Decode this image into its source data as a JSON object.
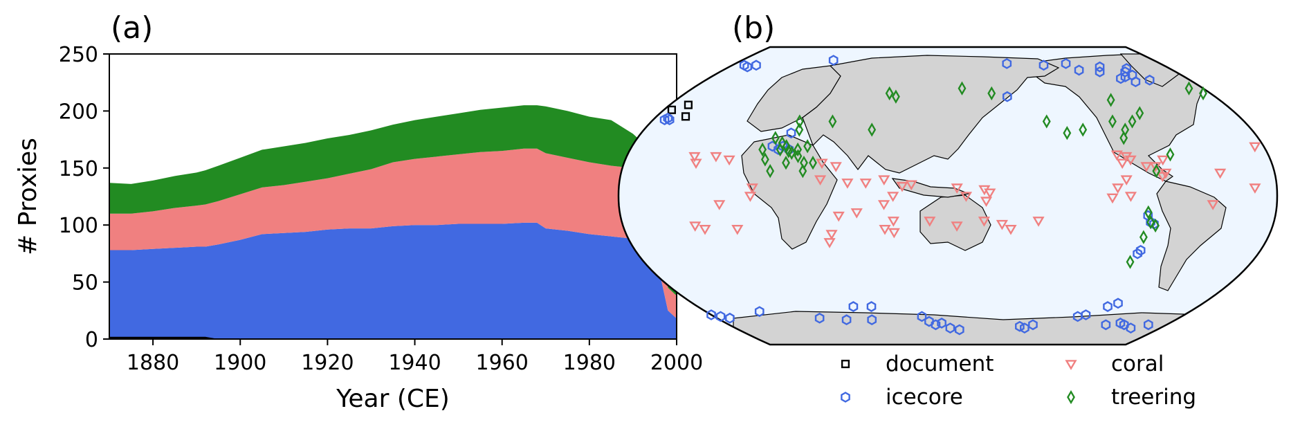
{
  "chart_data": [
    {
      "panel_label": "(a)",
      "type": "area",
      "stacked": true,
      "xlabel": "Year (CE)",
      "ylabel": "# Proxies",
      "xlim": [
        1870,
        2000
      ],
      "ylim": [
        0,
        250
      ],
      "xticks": [
        1880,
        1900,
        1920,
        1940,
        1960,
        1980,
        2000
      ],
      "yticks": [
        0,
        50,
        100,
        150,
        200,
        250
      ],
      "x": [
        1870,
        1875,
        1880,
        1885,
        1890,
        1892,
        1895,
        1900,
        1905,
        1910,
        1915,
        1920,
        1925,
        1930,
        1935,
        1940,
        1945,
        1950,
        1955,
        1960,
        1965,
        1968,
        1970,
        1975,
        1980,
        1985,
        1990,
        1992,
        1994,
        1996,
        1998,
        2000
      ],
      "series": [
        {
          "label": "document",
          "color": "#000000",
          "values": [
            2,
            2,
            2,
            2,
            2,
            2,
            0,
            0,
            0,
            0,
            0,
            0,
            0,
            0,
            0,
            0,
            0,
            0,
            0,
            0,
            0,
            0,
            0,
            0,
            0,
            0,
            0,
            0,
            0,
            0,
            0,
            0
          ]
        },
        {
          "label": "icecore",
          "color": "#4169e1",
          "values": [
            78,
            78,
            79,
            80,
            81,
            81,
            83,
            87,
            92,
            93,
            94,
            96,
            97,
            97,
            99,
            100,
            100,
            101,
            101,
            101,
            102,
            102,
            97,
            95,
            92,
            90,
            88,
            84,
            75,
            60,
            25,
            18
          ]
        },
        {
          "label": "coral",
          "color": "#f08080",
          "values": [
            32,
            32,
            33,
            35,
            36,
            37,
            38,
            40,
            41,
            42,
            44,
            45,
            48,
            52,
            56,
            58,
            60,
            61,
            63,
            64,
            65,
            65,
            66,
            64,
            63,
            62,
            62,
            61,
            58,
            40,
            20,
            20
          ]
        },
        {
          "label": "treering",
          "color": "#228b22",
          "values": [
            27,
            26,
            27,
            28,
            29,
            30,
            31,
            32,
            33,
            34,
            34,
            35,
            34,
            34,
            33,
            34,
            35,
            36,
            37,
            38,
            38,
            38,
            41,
            41,
            40,
            40,
            30,
            28,
            28,
            25,
            30,
            30
          ]
        }
      ]
    },
    {
      "panel_label": "(b)",
      "type": "scatter",
      "projection": "Robinson, centered on the Pacific",
      "coastlines": true,
      "land_color": "#d3d3d3",
      "ocean_color": "#eef6ff",
      "legend_placement": "bottom",
      "series": [
        {
          "label": "document",
          "marker": "square",
          "color": "#000000",
          "points": [
            [
              5,
              52
            ],
            [
              18,
              48
            ],
            [
              12,
              55
            ]
          ]
        },
        {
          "label": "icecore",
          "marker": "hexagon",
          "color": "#4169e1",
          "points": [
            [
              -45,
              72
            ],
            [
              -40,
              75
            ],
            [
              -38,
              73
            ],
            [
              -50,
              71
            ],
            [
              -42,
              69
            ],
            [
              -55,
              78
            ],
            [
              -35,
              77
            ],
            [
              -60,
              75
            ],
            [
              -30,
              70
            ],
            [
              -75,
              76
            ],
            [
              -80,
              80
            ],
            [
              -100,
              79
            ],
            [
              -140,
              60
            ],
            [
              -130,
              80
            ],
            [
              10,
              79
            ],
            [
              20,
              79
            ],
            [
              15,
              78
            ],
            [
              80,
              82
            ],
            [
              88,
              38
            ],
            [
              86,
              30
            ],
            [
              90,
              28
            ],
            [
              80,
              30
            ],
            [
              84,
              28
            ],
            [
              7,
              46
            ],
            [
              10,
              46
            ],
            [
              8,
              47
            ],
            [
              -70,
              -12
            ],
            [
              -68,
              -16
            ],
            [
              -66,
              -17
            ],
            [
              -69,
              -33
            ],
            [
              -70,
              -35
            ],
            [
              -60,
              -65
            ],
            [
              -65,
              -67
            ],
            [
              -75,
              -72
            ],
            [
              -80,
              -73
            ],
            [
              -50,
              -78
            ],
            [
              -40,
              -77
            ],
            [
              -35,
              -78
            ],
            [
              0,
              -72
            ],
            [
              5,
              -73
            ],
            [
              10,
              -74
            ],
            [
              40,
              -70
            ],
            [
              80,
              -74
            ],
            [
              100,
              -75
            ],
            [
              120,
              -75
            ],
            [
              160,
              -73
            ],
            [
              165,
              -76
            ],
            [
              170,
              -78
            ],
            [
              175,
              -77
            ],
            [
              -178,
              -80
            ],
            [
              -170,
              -81
            ],
            [
              -120,
              -79
            ],
            [
              -115,
              -80
            ],
            [
              -110,
              -78
            ],
            [
              125,
              -67
            ],
            [
              112,
              -67
            ],
            [
              -15,
              -78
            ],
            [
              -25,
              -80
            ]
          ]
        },
        {
          "label": "coral",
          "marker": "triangle-down",
          "color": "#f08080",
          "points": [
            [
              -85,
              25
            ],
            [
              -80,
              24
            ],
            [
              -83,
              20
            ],
            [
              -78,
              22
            ],
            [
              -70,
              18
            ],
            [
              -65,
              18
            ],
            [
              -62,
              12
            ],
            [
              -60,
              14
            ],
            [
              -82,
              10
            ],
            [
              -80,
              0
            ],
            [
              -90,
              -1
            ],
            [
              -87,
              5
            ],
            [
              -60,
              22
            ],
            [
              -30,
              14
            ],
            [
              40,
              20
            ],
            [
              38,
              24
            ],
            [
              50,
              24
            ],
            [
              58,
              22
            ],
            [
              73,
              5
            ],
            [
              72,
              0
            ],
            [
              55,
              -5
            ],
            [
              45,
              -20
            ],
            [
              40,
              -18
            ],
            [
              63,
              -20
            ],
            [
              110,
              10
            ],
            [
              110,
              20
            ],
            [
              118,
              18
            ],
            [
              125,
              8
            ],
            [
              135,
              8
            ],
            [
              145,
              10
            ],
            [
              155,
              6
            ],
            [
              160,
              7
            ],
            [
              150,
              0
            ],
            [
              145,
              -5
            ],
            [
              150,
              -15
            ],
            [
              145,
              -20
            ],
            [
              150,
              -22
            ],
            [
              113,
              -28
            ],
            [
              115,
              -23
            ],
            [
              120,
              -12
            ],
            [
              130,
              -10
            ],
            [
              170,
              -15
            ],
            [
              -175,
              -18
            ],
            [
              -160,
              -15
            ],
            [
              -150,
              -17
            ],
            [
              -145,
              -20
            ],
            [
              -130,
              -15
            ],
            [
              -170,
              0
            ],
            [
              -160,
              4
            ],
            [
              -159,
              -3
            ],
            [
              -157,
              2
            ],
            [
              -175,
              5
            ],
            [
              -12,
              5
            ],
            [
              -5,
              30
            ],
            [
              -35,
              -5
            ]
          ]
        },
        {
          "label": "treering",
          "marker": "diamond",
          "color": "#228b22",
          "points": [
            [
              80,
              35
            ],
            [
              85,
              28
            ],
            [
              90,
              27
            ],
            [
              92,
              26
            ],
            [
              95,
              28
            ],
            [
              96,
              24
            ],
            [
              100,
              30
            ],
            [
              88,
              30
            ],
            [
              85,
              32
            ],
            [
              90,
              45
            ],
            [
              92,
              40
            ],
            [
              75,
              28
            ],
            [
              78,
              22
            ],
            [
              82,
              15
            ],
            [
              100,
              15
            ],
            [
              105,
              20
            ],
            [
              100,
              20
            ],
            [
              110,
              45
            ],
            [
              145,
              60
            ],
            [
              135,
              40
            ],
            [
              140,
              62
            ],
            [
              -120,
              45
            ],
            [
              -100,
              40
            ],
            [
              -110,
              38
            ],
            [
              -75,
              40
            ],
            [
              -80,
              45
            ],
            [
              -78,
              35
            ],
            [
              -68,
              45
            ],
            [
              -60,
              50
            ],
            [
              -72,
              58
            ],
            [
              -65,
              15
            ],
            [
              -55,
              25
            ],
            [
              -70,
              -10
            ],
            [
              -68,
              -16
            ],
            [
              -65,
              -18
            ],
            [
              -70,
              -25
            ],
            [
              -72,
              -40
            ],
            [
              -170,
              65
            ],
            [
              -150,
              62
            ],
            [
              -5,
              62
            ],
            [
              -10,
              65
            ],
            [
              90,
              20
            ]
          ]
        }
      ]
    }
  ]
}
